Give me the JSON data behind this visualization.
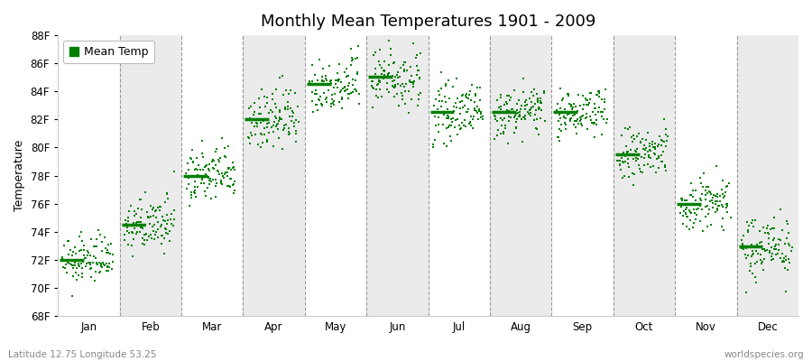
{
  "title": "Monthly Mean Temperatures 1901 - 2009",
  "ylabel": "Temperature",
  "xlabel_bottom_left": "Latitude 12.75 Longitude 53.25",
  "xlabel_bottom_right": "worldspecies.org",
  "months": [
    "Jan",
    "Feb",
    "Mar",
    "Apr",
    "May",
    "Jun",
    "Jul",
    "Aug",
    "Sep",
    "Oct",
    "Nov",
    "Dec"
  ],
  "mean_temps_f": [
    72.0,
    74.5,
    78.0,
    82.0,
    84.5,
    85.0,
    82.5,
    82.5,
    82.5,
    79.5,
    76.0,
    73.0
  ],
  "spread_f": [
    0.8,
    0.9,
    1.0,
    1.1,
    1.0,
    1.1,
    0.9,
    0.8,
    0.8,
    1.0,
    1.0,
    1.1
  ],
  "ylim": [
    68,
    88
  ],
  "yticks": [
    68,
    70,
    72,
    74,
    76,
    78,
    80,
    82,
    84,
    86,
    88
  ],
  "ytick_labels": [
    "68F",
    "70F",
    "72F",
    "74F",
    "76F",
    "78F",
    "80F",
    "82F",
    "84F",
    "86F",
    "88F"
  ],
  "n_years": 109,
  "dot_color": "#008000",
  "mean_line_color": "#008000",
  "bg_color_light": "#ffffff",
  "bg_color_dark": "#ebebeb",
  "grid_color": "#999999",
  "legend_label": "Mean Temp",
  "title_fontsize": 13,
  "label_fontsize": 9,
  "tick_fontsize": 8.5,
  "fig_bg": "#ffffff"
}
